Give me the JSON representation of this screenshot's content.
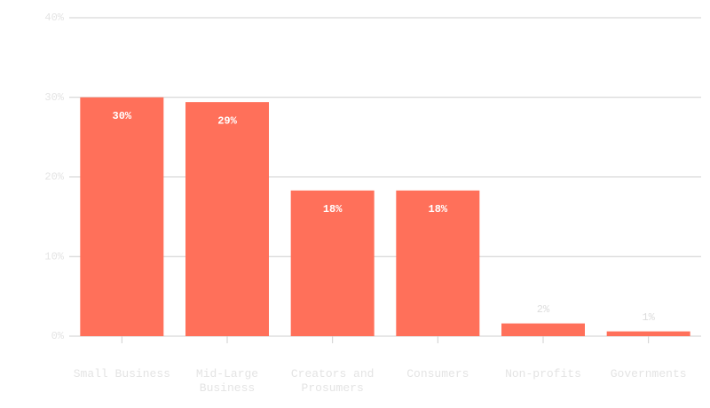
{
  "chart_data": {
    "type": "bar",
    "categories": [
      "Small Business",
      "Mid-Large Business",
      "Creators and Prosumers",
      "Consumers",
      "Non-profits",
      "Governments"
    ],
    "values": [
      30,
      29.4,
      18.3,
      18.3,
      1.6,
      0.6
    ],
    "value_labels": [
      "30%",
      "29%",
      "18%",
      "18%",
      "2%",
      "1%"
    ],
    "color": "#ff705a",
    "ylim": [
      0,
      40
    ],
    "yticks": [
      {
        "value": 0,
        "label": "0%"
      },
      {
        "value": 10,
        "label": "10%"
      },
      {
        "value": 20,
        "label": "20%"
      },
      {
        "value": 30,
        "label": "30%"
      },
      {
        "value": 40,
        "label": "40%"
      }
    ],
    "grid": true
  }
}
